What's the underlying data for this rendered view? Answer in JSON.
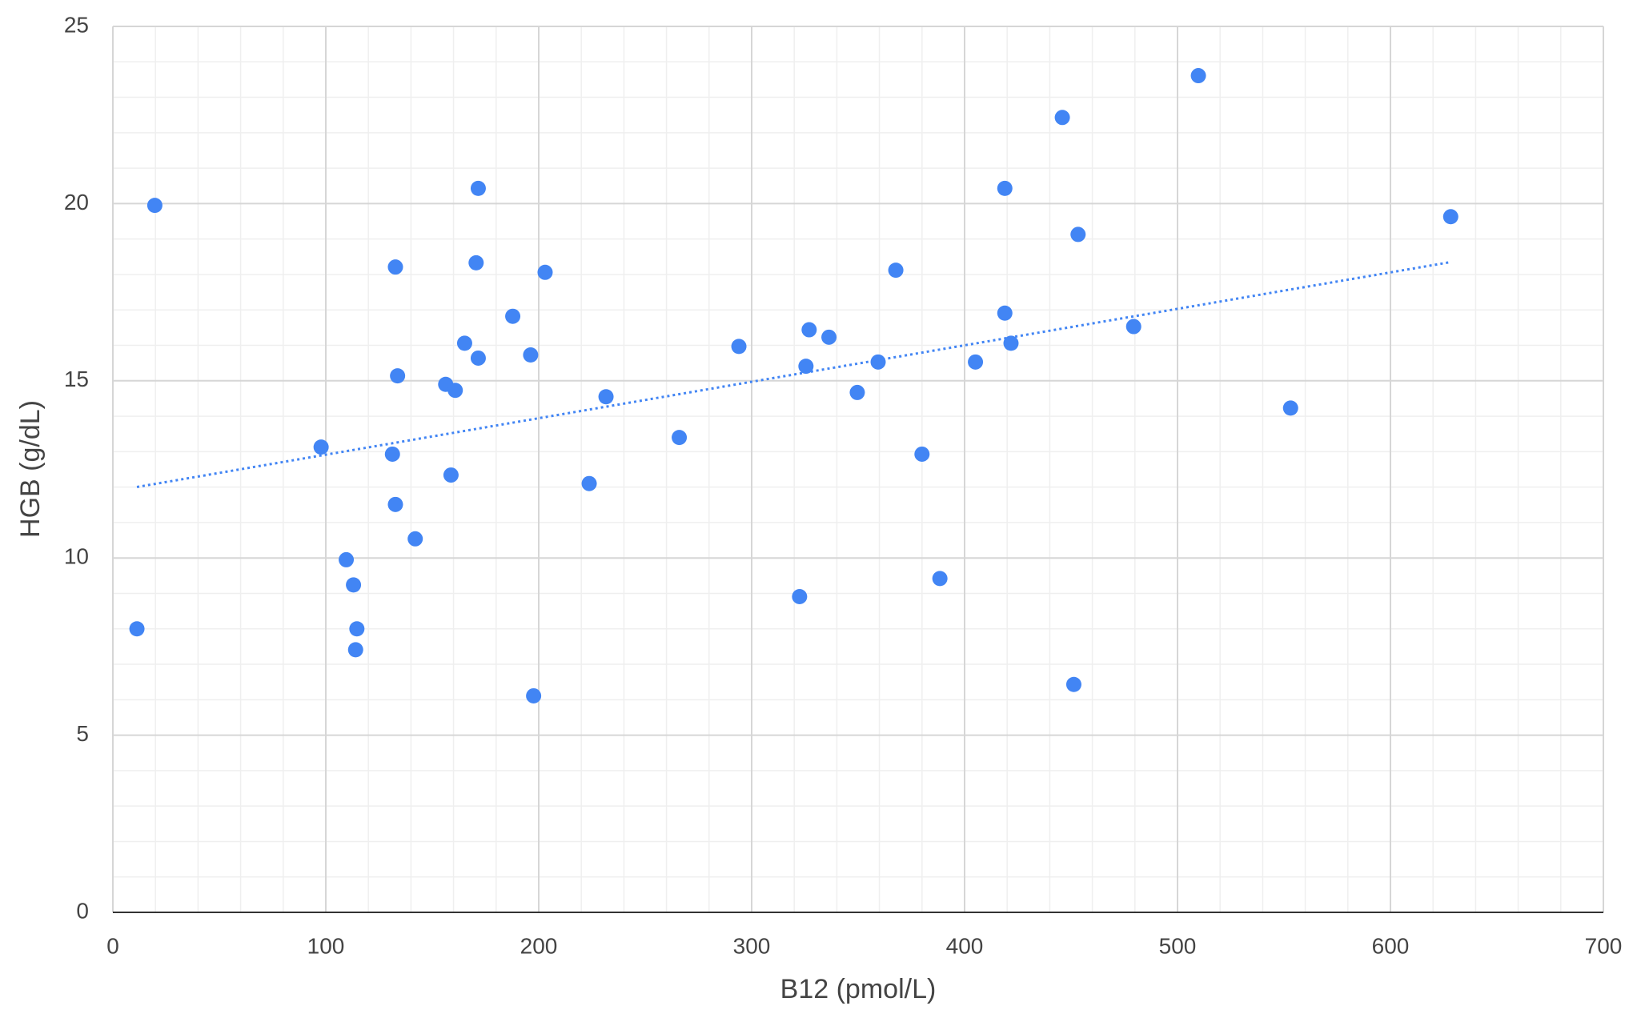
{
  "chart_data": {
    "type": "scatter",
    "x_label": "B12 (pmol/L)",
    "y_label": "HGB (g/dL)",
    "series": [
      {
        "color": "#4285f4",
        "x": [
          11.3,
          19.7,
          97.8,
          109.6,
          113,
          114.6,
          114,
          131.3,
          132.7,
          133.7,
          132.7,
          142,
          156.3,
          160.8,
          158.8,
          165.2,
          170.6,
          171.6,
          171.6,
          187.8,
          196.2,
          203,
          197.6,
          223.7,
          231.6,
          266,
          294,
          322.5,
          325.5,
          327,
          336.3,
          349.6,
          359.4,
          367.7,
          380,
          388.4,
          405.1,
          418.9,
          418.9,
          421.8,
          445.9,
          453.3,
          451.3,
          479.4,
          509.8,
          553.1,
          628.3
        ],
        "values": [
          8.0,
          19.95,
          13.13,
          9.95,
          9.24,
          8.0,
          7.41,
          12.93,
          18.21,
          15.14,
          11.51,
          10.54,
          14.9,
          14.73,
          12.34,
          16.06,
          18.33,
          20.43,
          15.64,
          16.82,
          15.73,
          18.06,
          6.11,
          12.1,
          14.55,
          13.4,
          15.97,
          8.91,
          15.41,
          16.44,
          16.23,
          14.67,
          15.53,
          18.12,
          12.93,
          9.42,
          15.53,
          16.91,
          20.43,
          16.06,
          22.43,
          19.13,
          6.43,
          16.53,
          23.61,
          14.23,
          19.63
        ]
      }
    ],
    "trendline": {
      "type": "linear",
      "color": "#4285f4"
    },
    "xlim": [
      0,
      700
    ],
    "xticks": [
      0,
      100,
      200,
      300,
      400,
      500,
      600,
      700
    ],
    "ylim": [
      0,
      25
    ],
    "yticks": [
      0,
      5,
      10,
      15,
      20,
      25
    ],
    "grid": true,
    "minor_grid_count": 4
  }
}
